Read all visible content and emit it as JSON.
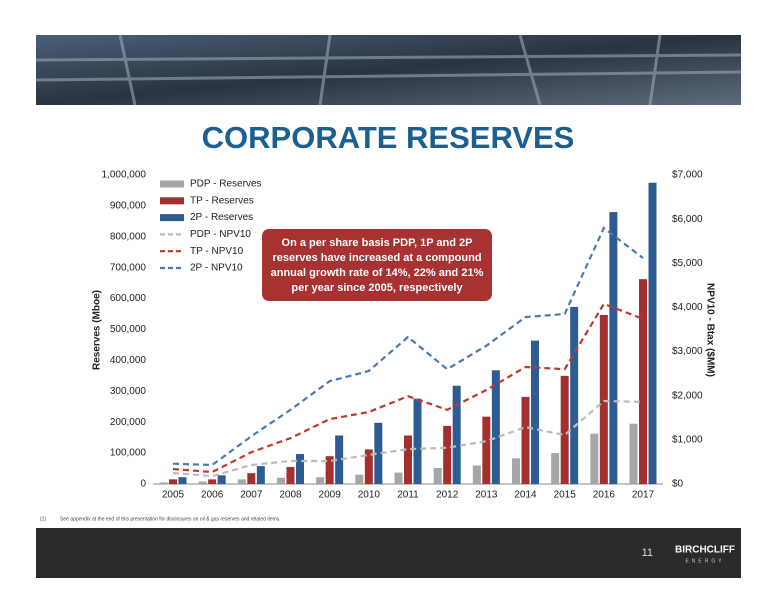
{
  "chart_data": {
    "type": "bar",
    "title": "CORPORATE RESERVES",
    "y_label": "Reserves (Mboe)",
    "y2_label": "NPV10 - Btax ($MM)",
    "categories": [
      "2005",
      "2006",
      "2007",
      "2008",
      "2009",
      "2010",
      "2011",
      "2012",
      "2013",
      "2014",
      "2015",
      "2016",
      "2017"
    ],
    "series": [
      {
        "name": "PDP - Reserves",
        "type": "bar",
        "color": "#a6a6a6",
        "values": [
          5000,
          8000,
          15000,
          20000,
          22000,
          30000,
          37000,
          52000,
          60000,
          83000,
          100000,
          163000,
          195000
        ]
      },
      {
        "name": "TP - Reserves",
        "type": "bar",
        "color": "#a32f2f",
        "values": [
          15000,
          15000,
          35000,
          55000,
          90000,
          112000,
          157000,
          188000,
          218000,
          282000,
          350000,
          547000,
          663000
        ]
      },
      {
        "name": "2P - Reserves",
        "type": "bar",
        "color": "#2d5c93",
        "values": [
          22000,
          28000,
          58000,
          97000,
          157000,
          198000,
          276000,
          318000,
          368000,
          464000,
          573000,
          880000,
          975000
        ]
      },
      {
        "name": "PDP - NPV10",
        "type": "line",
        "axis": "y2",
        "dashed": true,
        "color": "#bdbdbd",
        "values": [
          250,
          180,
          430,
          520,
          520,
          660,
          790,
          820,
          970,
          1290,
          1110,
          1880,
          1860
        ]
      },
      {
        "name": "TP - NPV10",
        "type": "line",
        "axis": "y2",
        "dashed": true,
        "color": "#c0392b",
        "values": [
          340,
          270,
          720,
          1040,
          1470,
          1630,
          1990,
          1680,
          2130,
          2650,
          2600,
          4080,
          3740
        ]
      },
      {
        "name": "2P - NPV10",
        "type": "line",
        "axis": "y2",
        "dashed": true,
        "color": "#4a7ab5",
        "values": [
          460,
          430,
          1080,
          1680,
          2330,
          2560,
          3330,
          2600,
          3130,
          3780,
          3850,
          5800,
          5120
        ]
      }
    ],
    "ylim": [
      0,
      1000000
    ],
    "yticks": [
      0,
      {
        "value": 100000,
        "label": "100,000"
      },
      {
        "value": 200000,
        "label": "200,000"
      },
      {
        "value": 300000,
        "label": "300,000"
      },
      {
        "value": 400000,
        "label": "400,000"
      },
      {
        "value": 500000,
        "label": "500,000"
      },
      {
        "value": 600000,
        "label": "600,000"
      },
      {
        "value": 700000,
        "label": "700,000"
      },
      {
        "value": 800000,
        "label": "800,000"
      },
      {
        "value": 900000,
        "label": "900,000"
      },
      {
        "value": 1000000,
        "label": "1,000,000"
      }
    ],
    "y2lim": [
      0,
      7000
    ],
    "y2ticks": [
      {
        "value": 0,
        "label": "$0"
      },
      {
        "value": 1000,
        "label": "$1,000"
      },
      {
        "value": 2000,
        "label": "$2,000"
      },
      {
        "value": 3000,
        "label": "$3,000"
      },
      {
        "value": 4000,
        "label": "$4,000"
      },
      {
        "value": 5000,
        "label": "$5,000"
      },
      {
        "value": 6000,
        "label": "$6,000"
      },
      {
        "value": 7000,
        "label": "$7,000"
      }
    ],
    "grid": false,
    "legend": "top-left",
    "annotation": {
      "color": "#a83232",
      "lines": [
        "On a per share basis PDP, 1P and 2P",
        "reserves have increased at a compound",
        "annual growth rate of 14%, 22% and 21%",
        "per year since 2005, respectively"
      ]
    }
  },
  "footnote": {
    "marker": "(1)",
    "text": "See appendix at the end of this presentation for disclosures on oil & gas reserves and related items."
  },
  "footer": {
    "page": "11",
    "logo": "BIRCHCLIFF",
    "logo_sub": "ENERGY"
  }
}
